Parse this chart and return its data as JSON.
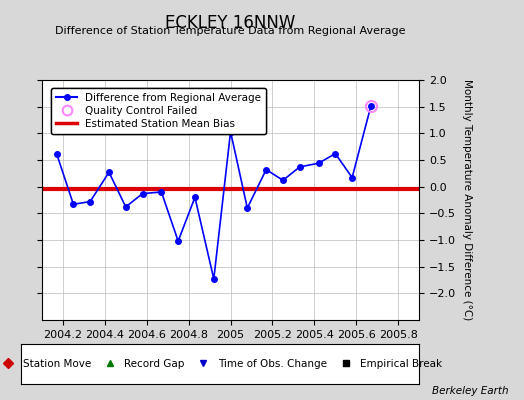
{
  "title": "ECKLEY 16NNW",
  "subtitle": "Difference of Station Temperature Data from Regional Average",
  "ylabel": "Monthly Temperature Anomaly Difference (°C)",
  "xlabel_ticks": [
    2004.2,
    2004.4,
    2004.6,
    2004.8,
    2005.0,
    2005.2,
    2005.4,
    2005.6,
    2005.8
  ],
  "xlabel_labels": [
    "2004.2",
    "2004.4",
    "2004.6",
    "2004.8",
    "2005",
    "2005.2",
    "2005.4",
    "2005.6",
    "2005.8"
  ],
  "xlim": [
    2004.1,
    2005.9
  ],
  "ylim": [
    -2.5,
    2.0
  ],
  "yticks": [
    -2.0,
    -1.5,
    -1.0,
    -0.5,
    0.0,
    0.5,
    1.0,
    1.5,
    2.0
  ],
  "x_data": [
    2004.17,
    2004.25,
    2004.33,
    2004.42,
    2004.5,
    2004.58,
    2004.67,
    2004.75,
    2004.83,
    2004.92,
    2005.0,
    2005.08,
    2005.17,
    2005.25,
    2005.33,
    2005.42,
    2005.5,
    2005.58,
    2005.67
  ],
  "y_data": [
    0.62,
    -0.33,
    -0.28,
    0.27,
    -0.38,
    -0.13,
    -0.1,
    -1.02,
    -0.2,
    -1.73,
    1.03,
    -0.4,
    0.32,
    0.12,
    0.37,
    0.44,
    0.62,
    0.17,
    1.52
  ],
  "qc_failed_x": [
    2005.67
  ],
  "qc_failed_y": [
    1.52
  ],
  "bias_y": -0.05,
  "line_color": "#0000ff",
  "bias_color": "#dd0000",
  "qc_color": "#ff88ff",
  "bg_color": "#d8d8d8",
  "plot_bg": "#ffffff",
  "watermark": "Berkeley Earth",
  "legend1_items": [
    {
      "label": "Difference from Regional Average",
      "color": "#0000ff",
      "marker": "o",
      "lw": 1.5
    },
    {
      "label": "Quality Control Failed",
      "color": "#ff88ff",
      "marker": "o",
      "lw": 0
    },
    {
      "label": "Estimated Station Mean Bias",
      "color": "#dd0000",
      "lw": 2.5
    }
  ],
  "legend2_items": [
    {
      "label": "Station Move",
      "color": "#cc0000",
      "marker": "D"
    },
    {
      "label": "Record Gap",
      "color": "#007700",
      "marker": "^"
    },
    {
      "label": "Time of Obs. Change",
      "color": "#0000cc",
      "marker": "v"
    },
    {
      "label": "Empirical Break",
      "color": "#000000",
      "marker": "s"
    }
  ]
}
